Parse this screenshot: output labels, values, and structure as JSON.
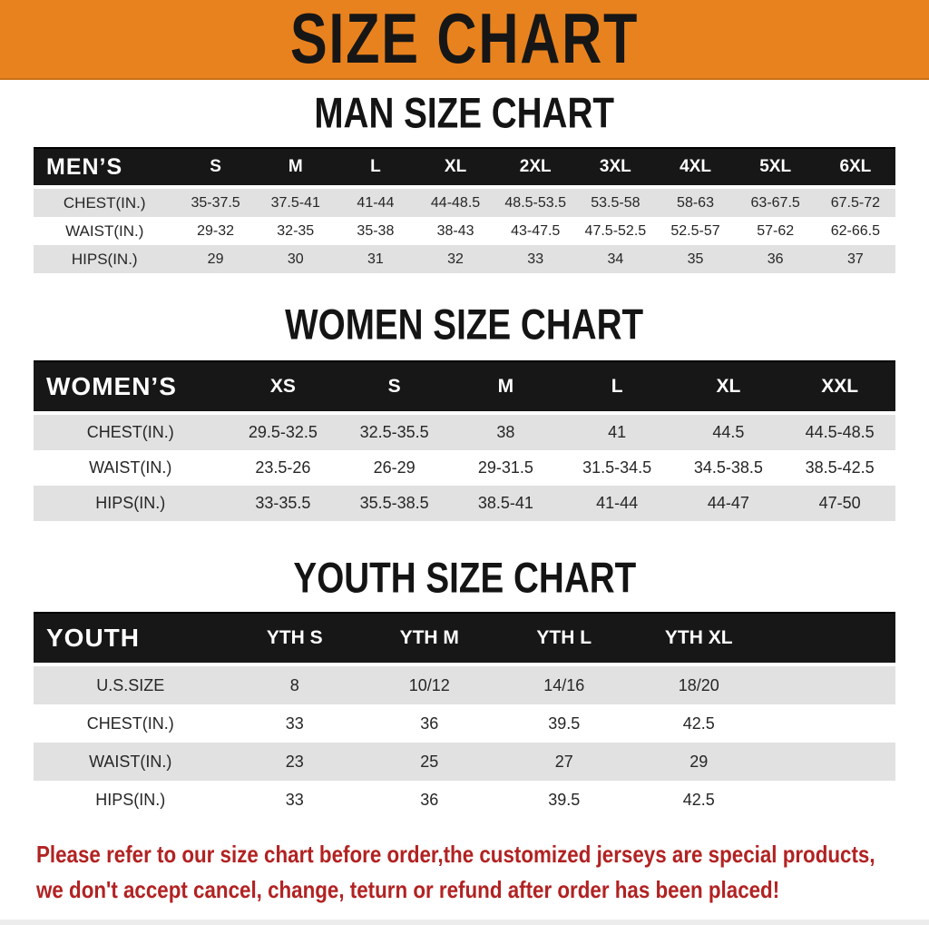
{
  "banner": {
    "title": "SIZE CHART"
  },
  "theme": {
    "banner_bg": "#E8821E",
    "bar_bg": "#171717",
    "stripe": "#E1E1E1",
    "cell_text": "#262626",
    "notice_color": "#B22222"
  },
  "sections": [
    {
      "heading": "MAN SIZE CHART",
      "table": {
        "corner": "MEN’S",
        "columns": [
          "S",
          "M",
          "L",
          "XL",
          "2XL",
          "3XL",
          "4XL",
          "5XL",
          "6XL"
        ],
        "rows": [
          {
            "label": "CHEST(IN.)",
            "values": [
              "35-37.5",
              "37.5-41",
              "41-44",
              "44-48.5",
              "48.5-53.5",
              "53.5-58",
              "58-63",
              "63-67.5",
              "67.5-72"
            ]
          },
          {
            "label": "WAIST(IN.)",
            "values": [
              "29-32",
              "32-35",
              "35-38",
              "38-43",
              "43-47.5",
              "47.5-52.5",
              "52.5-57",
              "57-62",
              "62-66.5"
            ]
          },
          {
            "label": "HIPS(IN.)",
            "values": [
              "29",
              "30",
              "31",
              "32",
              "33",
              "34",
              "35",
              "36",
              "37"
            ]
          }
        ]
      }
    },
    {
      "heading": "WOMEN SIZE CHART",
      "table": {
        "corner": "WOMEN’S",
        "columns": [
          "XS",
          "S",
          "M",
          "L",
          "XL",
          "XXL"
        ],
        "rows": [
          {
            "label": "CHEST(IN.)",
            "values": [
              "29.5-32.5",
              "32.5-35.5",
              "38",
              "41",
              "44.5",
              "44.5-48.5"
            ]
          },
          {
            "label": "WAIST(IN.)",
            "values": [
              "23.5-26",
              "26-29",
              "29-31.5",
              "31.5-34.5",
              "34.5-38.5",
              "38.5-42.5"
            ]
          },
          {
            "label": "HIPS(IN.)",
            "values": [
              "33-35.5",
              "35.5-38.5",
              "38.5-41",
              "41-44",
              "44-47",
              "47-50"
            ]
          }
        ]
      }
    },
    {
      "heading": "YOUTH SIZE CHART",
      "table": {
        "corner": "YOUTH",
        "columns": [
          "YTH S",
          "YTH M",
          "YTH L",
          "YTH XL"
        ],
        "rows": [
          {
            "label": "U.S.SIZE",
            "values": [
              "8",
              "10/12",
              "14/16",
              "18/20"
            ]
          },
          {
            "label": "CHEST(IN.)",
            "values": [
              "33",
              "36",
              "39.5",
              "42.5"
            ]
          },
          {
            "label": "WAIST(IN.)",
            "values": [
              "23",
              "25",
              "27",
              "29"
            ]
          },
          {
            "label": "HIPS(IN.)",
            "values": [
              "33",
              "36",
              "39.5",
              "42.5"
            ]
          }
        ]
      }
    }
  ],
  "footer": {
    "lines": [
      "Please refer to our size chart before order,the customized jerseys are special products,",
      "we don't accept cancel, change, teturn or refund after order has been placed!"
    ]
  }
}
